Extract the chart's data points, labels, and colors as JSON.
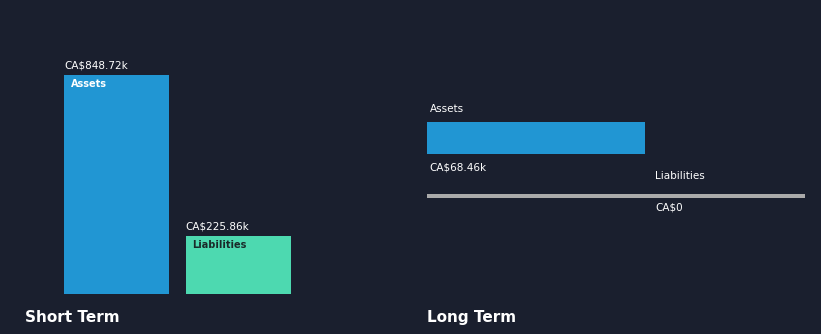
{
  "bg_color": "#1a1f2e",
  "text_color": "#ffffff",
  "short_term_assets_value": 848.72,
  "short_term_liabilities_value": 225.86,
  "long_term_assets_value": 68.46,
  "long_term_liabilities_value": 0,
  "short_term_assets_color": "#2196d3",
  "short_term_liabilities_color": "#4dd9b0",
  "long_term_assets_color": "#2196d3",
  "short_term_label": "Short Term",
  "long_term_label": "Long Term",
  "assets_label": "Assets",
  "liabilities_label": "Liabilities",
  "short_term_assets_tag": "CA$848.72k",
  "short_term_liabilities_tag": "CA$225.86k",
  "long_term_assets_tag": "CA$68.46k",
  "long_term_liabilities_tag": "CA$0"
}
